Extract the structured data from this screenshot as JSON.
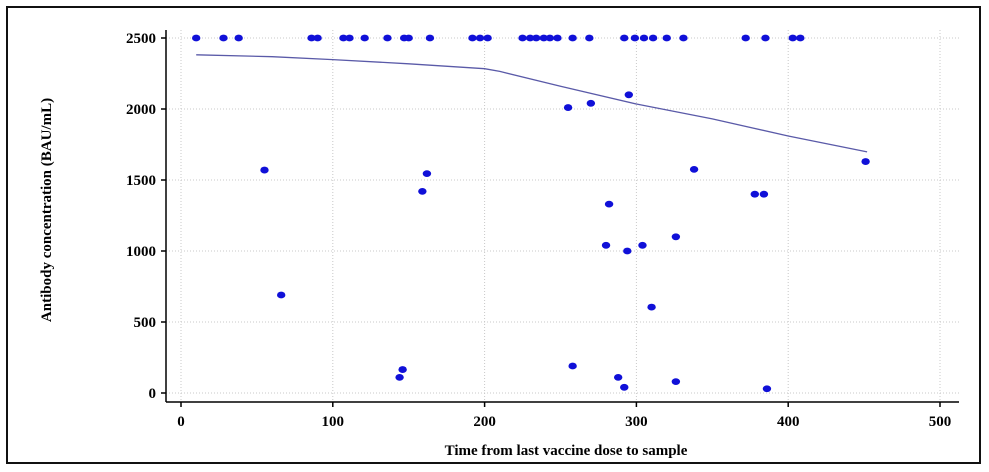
{
  "chart_data": {
    "type": "scatter",
    "xlabel": "Time from last vaccine dose to sample",
    "ylabel": "Antibody concentration (BAU/mL)",
    "xlim": [
      0,
      500
    ],
    "ylim": [
      0,
      2500
    ],
    "x_ticks": [
      0,
      100,
      200,
      300,
      400,
      500
    ],
    "y_ticks": [
      0,
      500,
      1000,
      1500,
      2000,
      2500
    ],
    "grid": true,
    "point_color": "#1010d8",
    "trend_color": "#5a5aa8",
    "points": [
      [
        10,
        2500
      ],
      [
        28,
        2500
      ],
      [
        38,
        2500
      ],
      [
        86,
        2500
      ],
      [
        90,
        2500
      ],
      [
        107,
        2500
      ],
      [
        111,
        2500
      ],
      [
        121,
        2500
      ],
      [
        136,
        2500
      ],
      [
        147,
        2500
      ],
      [
        150,
        2500
      ],
      [
        164,
        2500
      ],
      [
        192,
        2500
      ],
      [
        197,
        2500
      ],
      [
        202,
        2500
      ],
      [
        225,
        2500
      ],
      [
        230,
        2500
      ],
      [
        234,
        2500
      ],
      [
        239,
        2500
      ],
      [
        243,
        2500
      ],
      [
        248,
        2500
      ],
      [
        258,
        2500
      ],
      [
        269,
        2500
      ],
      [
        292,
        2500
      ],
      [
        299,
        2500
      ],
      [
        305,
        2500
      ],
      [
        311,
        2500
      ],
      [
        320,
        2500
      ],
      [
        331,
        2500
      ],
      [
        372,
        2500
      ],
      [
        385,
        2500
      ],
      [
        403,
        2500
      ],
      [
        408,
        2500
      ],
      [
        255,
        2010
      ],
      [
        270,
        2040
      ],
      [
        295,
        2100
      ],
      [
        55,
        1570
      ],
      [
        162,
        1545
      ],
      [
        159,
        1420
      ],
      [
        338,
        1575
      ],
      [
        451,
        1630
      ],
      [
        282,
        1330
      ],
      [
        378,
        1400
      ],
      [
        384,
        1400
      ],
      [
        280,
        1040
      ],
      [
        294,
        1000
      ],
      [
        304,
        1040
      ],
      [
        326,
        1100
      ],
      [
        66,
        690
      ],
      [
        310,
        605
      ],
      [
        146,
        165
      ],
      [
        144,
        110
      ],
      [
        258,
        190
      ],
      [
        288,
        110
      ],
      [
        292,
        40
      ],
      [
        326,
        80
      ],
      [
        386,
        30
      ]
    ],
    "trend": [
      [
        10,
        2382
      ],
      [
        60,
        2368
      ],
      [
        100,
        2348
      ],
      [
        150,
        2318
      ],
      [
        200,
        2284
      ],
      [
        210,
        2265
      ],
      [
        250,
        2160
      ],
      [
        300,
        2035
      ],
      [
        350,
        1930
      ],
      [
        400,
        1810
      ],
      [
        452,
        1698
      ]
    ]
  }
}
